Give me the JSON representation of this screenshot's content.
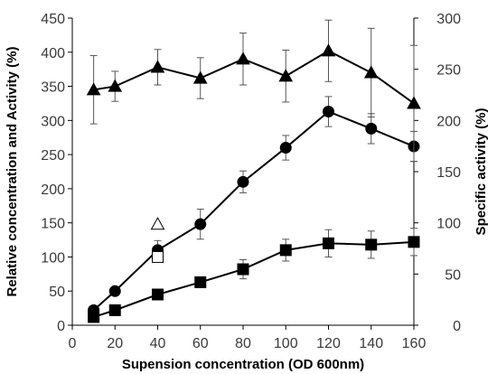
{
  "chart_data": {
    "type": "line",
    "xlabel": "Supension concentration (OD 600nm)",
    "ylabel": "Relative concentration and Activity (%)",
    "y2label": "Specific activity (%)",
    "xlim": [
      0,
      160
    ],
    "ylim": [
      0,
      450
    ],
    "y2lim": [
      0,
      300
    ],
    "xticks": [
      "0",
      "20",
      "40",
      "60",
      "80",
      "100",
      "120",
      "140",
      "160"
    ],
    "yticks": [
      "0",
      "50",
      "100",
      "150",
      "200",
      "250",
      "300",
      "350",
      "400",
      "450"
    ],
    "y2ticks": [
      "0",
      "50",
      "100",
      "150",
      "200",
      "250",
      "300"
    ],
    "grid": false,
    "series": [
      {
        "marker": "circle",
        "axis": "left",
        "points": [
          {
            "x": 10,
            "y": 22,
            "err": 5
          },
          {
            "x": 20,
            "y": 50,
            "err": 4
          },
          {
            "x": 40,
            "y": 110,
            "err": 14
          },
          {
            "x": 60,
            "y": 148,
            "err": 22
          },
          {
            "x": 80,
            "y": 210,
            "err": 16
          },
          {
            "x": 100,
            "y": 260,
            "err": 18
          },
          {
            "x": 120,
            "y": 313,
            "err": 22
          },
          {
            "x": 140,
            "y": 288,
            "err": 22
          },
          {
            "x": 160,
            "y": 262,
            "err": 22
          }
        ]
      },
      {
        "marker": "square",
        "axis": "left",
        "points": [
          {
            "x": 10,
            "y": 12,
            "err": 3
          },
          {
            "x": 20,
            "y": 22,
            "err": 3
          },
          {
            "x": 40,
            "y": 45,
            "err": 5
          },
          {
            "x": 60,
            "y": 63,
            "err": 7
          },
          {
            "x": 80,
            "y": 82,
            "err": 14
          },
          {
            "x": 100,
            "y": 110,
            "err": 16
          },
          {
            "x": 120,
            "y": 120,
            "err": 20
          },
          {
            "x": 140,
            "y": 118,
            "err": 20
          },
          {
            "x": 160,
            "y": 122,
            "err": 20
          }
        ]
      },
      {
        "marker": "triangle",
        "axis": "left",
        "points": [
          {
            "x": 10,
            "y": 345,
            "err": 50
          },
          {
            "x": 20,
            "y": 350,
            "err": 22
          },
          {
            "x": 40,
            "y": 378,
            "err": 26
          },
          {
            "x": 60,
            "y": 362,
            "err": 30
          },
          {
            "x": 80,
            "y": 390,
            "err": 38
          },
          {
            "x": 100,
            "y": 365,
            "err": 38
          },
          {
            "x": 120,
            "y": 402,
            "err": 45
          },
          {
            "x": 140,
            "y": 370,
            "err": 65
          },
          {
            "x": 160,
            "y": 325,
            "err": 85
          }
        ]
      }
    ],
    "open_markers": [
      {
        "marker": "triangle",
        "x": 40,
        "y": 148
      },
      {
        "marker": "square",
        "x": 40,
        "y": 100
      }
    ]
  }
}
